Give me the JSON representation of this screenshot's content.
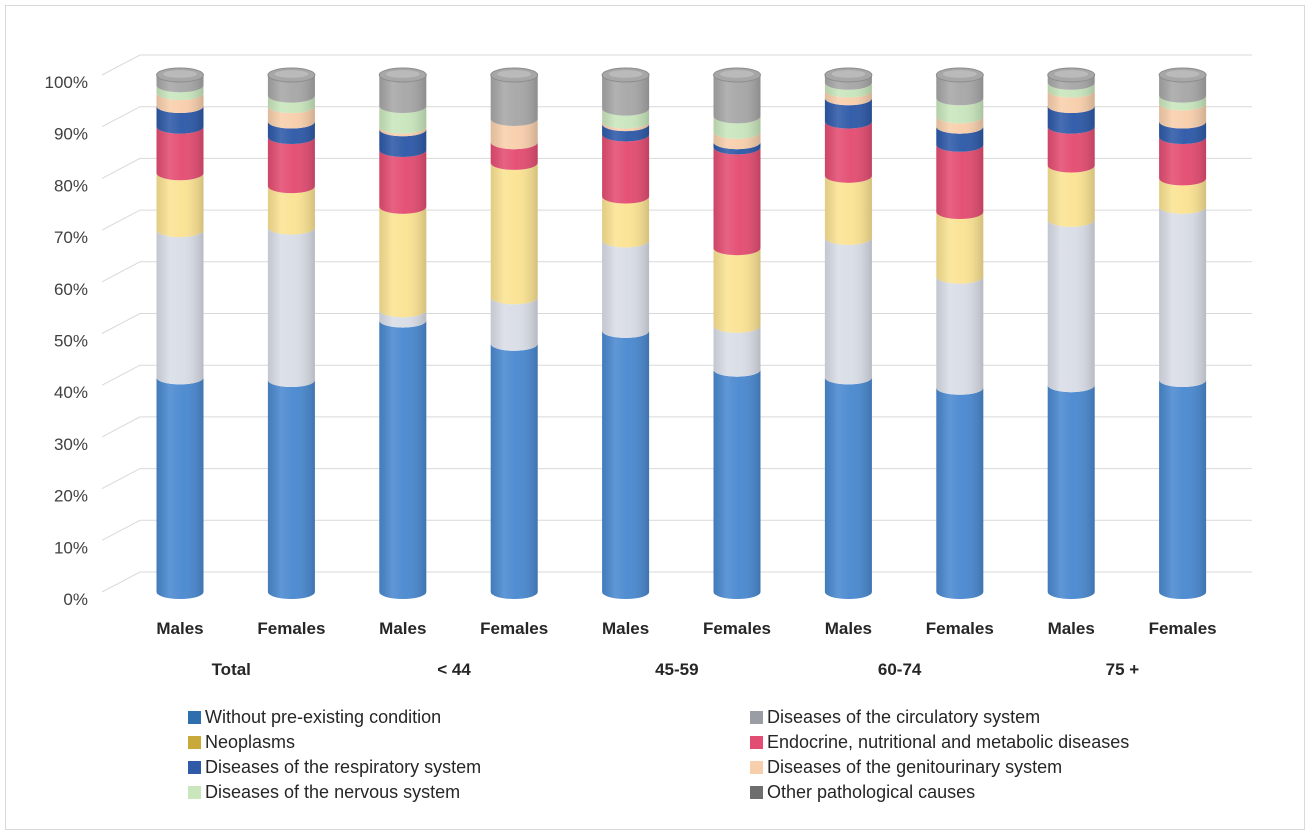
{
  "chart_data": {
    "type": "bar",
    "stacked": true,
    "percent": true,
    "title": "",
    "xlabel": "",
    "ylabel": "",
    "ylim": [
      0,
      100
    ],
    "grid": true,
    "legend_position": "bottom",
    "y_ticks": [
      "0%",
      "10%",
      "20%",
      "30%",
      "40%",
      "50%",
      "60%",
      "70%",
      "80%",
      "90%",
      "100%"
    ],
    "categories": [
      "Males",
      "Females",
      "Males",
      "Females",
      "Males",
      "Females",
      "Males",
      "Females",
      "Males",
      "Females"
    ],
    "groups": [
      "Total",
      "< 44",
      "45-59",
      "60-74",
      "75 +"
    ],
    "series": [
      {
        "name": "Without pre-existing condition",
        "color": "#4a89d0",
        "values": [
          41.5,
          41,
          52.5,
          48,
          50.5,
          43,
          41.5,
          39.5,
          40,
          41
        ]
      },
      {
        "name": "Diseases of the circulatory system",
        "color": "#d9dde6",
        "values": [
          28.5,
          29.5,
          2,
          9,
          17.5,
          8.5,
          27,
          21.5,
          32,
          33.5
        ]
      },
      {
        "name": "Neoplasms",
        "color": "#fbe393",
        "values": [
          11,
          8,
          20,
          26,
          8.5,
          15,
          12,
          12.5,
          10.5,
          5.5
        ]
      },
      {
        "name": "Endocrine, nutritional and metabolic diseases",
        "color": "#e44d72",
        "values": [
          9,
          9.5,
          11,
          4,
          12,
          19.5,
          10.5,
          13,
          7.5,
          8
        ]
      },
      {
        "name": "Diseases of the respiratory system",
        "color": "#2e5aa8",
        "values": [
          4,
          3,
          4,
          0,
          2,
          1,
          4.5,
          3.5,
          4,
          3
        ]
      },
      {
        "name": "Diseases of the genitourinary system",
        "color": "#f8cfac",
        "values": [
          2.5,
          3,
          0.5,
          4.5,
          0.5,
          2,
          1.5,
          2,
          3,
          3.5
        ]
      },
      {
        "name": "Diseases of the nervous system",
        "color": "#c9e6bd",
        "values": [
          1.5,
          2,
          4,
          0,
          2.5,
          3,
          1.5,
          3.5,
          1.5,
          1.5
        ]
      },
      {
        "name": "Other pathological causes",
        "color": "#a7a7a7",
        "values": [
          2,
          4,
          6,
          8.5,
          6.5,
          8,
          1.5,
          4.5,
          1.5,
          4
        ]
      }
    ]
  },
  "legend_items": [
    {
      "label": "Without pre-existing condition",
      "color": "#2f6fae"
    },
    {
      "label": "Diseases of the circulatory system",
      "color": "#9a9da3"
    },
    {
      "label": "Neoplasms",
      "color": "#c9a93a"
    },
    {
      "label": "Endocrine, nutritional and metabolic diseases",
      "color": "#e44d72"
    },
    {
      "label": "Diseases of the respiratory system",
      "color": "#2e5aa8"
    },
    {
      "label": "Diseases of the genitourinary system",
      "color": "#f8cfac"
    },
    {
      "label": "Diseases of the nervous system",
      "color": "#c9e6bd"
    },
    {
      "label": "Other pathological causes",
      "color": "#6e6e6e"
    }
  ]
}
